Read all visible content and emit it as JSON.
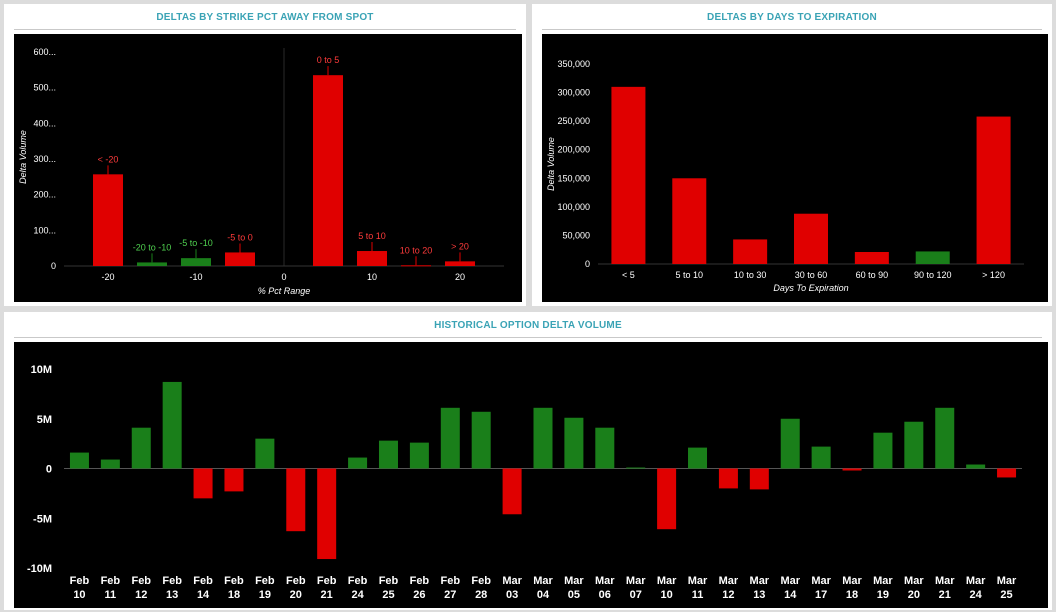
{
  "colors": {
    "up": "#1a7f1a",
    "down": "#e00000",
    "axis_text": "#ffffff",
    "title": "#3aa3b5"
  },
  "chart_data": [
    {
      "id": "strike",
      "type": "bar",
      "title": "DELTAS BY STRIKE PCT AWAY FROM SPOT",
      "xlabel": "% Pct Range",
      "ylabel": "Delta Volume",
      "xlim": [
        -25,
        25
      ],
      "x_ticks": [
        -20,
        -10,
        0,
        10,
        20
      ],
      "ylim": [
        0,
        600
      ],
      "y_ticks": [
        0,
        100,
        200,
        300,
        400,
        500,
        600
      ],
      "y_tick_labels": [
        "0",
        "100...",
        "200...",
        "300...",
        "400...",
        "500...",
        "600..."
      ],
      "grid": false,
      "bars": [
        {
          "label": "< -20",
          "x": -20,
          "value": 257,
          "color": "red"
        },
        {
          "label": "-20 to -10",
          "x": -15,
          "value": 10,
          "color": "green"
        },
        {
          "label": "-5 to -10",
          "x": -10,
          "value": 22,
          "color": "green"
        },
        {
          "label": "-5 to 0",
          "x": -5,
          "value": 38,
          "color": "red"
        },
        {
          "label": "0 to 5",
          "x": 5,
          "value": 535,
          "color": "red"
        },
        {
          "label": "5 to 10",
          "x": 10,
          "value": 42,
          "color": "red"
        },
        {
          "label": "10 to 20",
          "x": 15,
          "value": 2,
          "color": "red"
        },
        {
          "label": "> 20",
          "x": 20,
          "value": 13,
          "color": "red"
        }
      ]
    },
    {
      "id": "expiry",
      "type": "bar",
      "title": "DELTAS BY DAYS TO EXPIRATION",
      "xlabel": "Days To Expiration",
      "ylabel": "Delta Volume",
      "categories": [
        "< 5",
        "5 to 10",
        "10 to 30",
        "30 to 60",
        "60 to 90",
        "90 to 120",
        "> 120"
      ],
      "values": [
        310000,
        150000,
        43000,
        88000,
        21000,
        22000,
        258000
      ],
      "bar_colors": [
        "red",
        "red",
        "red",
        "red",
        "red",
        "green",
        "red"
      ],
      "ylim": [
        0,
        350000
      ],
      "y_ticks": [
        0,
        50000,
        100000,
        150000,
        200000,
        250000,
        300000,
        350000
      ],
      "y_tick_labels": [
        "0",
        "50,000",
        "100,000",
        "150,000",
        "200,000",
        "250,000",
        "300,000",
        "350,000"
      ],
      "grid": false
    },
    {
      "id": "history",
      "type": "bar",
      "title": "HISTORICAL OPTION DELTA VOLUME",
      "categories": [
        [
          "Feb",
          "10"
        ],
        [
          "Feb",
          "11"
        ],
        [
          "Feb",
          "12"
        ],
        [
          "Feb",
          "13"
        ],
        [
          "Feb",
          "14"
        ],
        [
          "Feb",
          "18"
        ],
        [
          "Feb",
          "19"
        ],
        [
          "Feb",
          "20"
        ],
        [
          "Feb",
          "21"
        ],
        [
          "Feb",
          "24"
        ],
        [
          "Feb",
          "25"
        ],
        [
          "Feb",
          "26"
        ],
        [
          "Feb",
          "27"
        ],
        [
          "Feb",
          "28"
        ],
        [
          "Mar",
          "03"
        ],
        [
          "Mar",
          "04"
        ],
        [
          "Mar",
          "05"
        ],
        [
          "Mar",
          "06"
        ],
        [
          "Mar",
          "07"
        ],
        [
          "Mar",
          "10"
        ],
        [
          "Mar",
          "11"
        ],
        [
          "Mar",
          "12"
        ],
        [
          "Mar",
          "13"
        ],
        [
          "Mar",
          "14"
        ],
        [
          "Mar",
          "17"
        ],
        [
          "Mar",
          "18"
        ],
        [
          "Mar",
          "19"
        ],
        [
          "Mar",
          "20"
        ],
        [
          "Mar",
          "21"
        ],
        [
          "Mar",
          "24"
        ],
        [
          "Mar",
          "25"
        ]
      ],
      "values": [
        1.6,
        0.9,
        4.1,
        8.7,
        -3.0,
        -2.3,
        3.0,
        -6.3,
        -9.1,
        1.1,
        2.8,
        2.6,
        6.1,
        5.7,
        -4.6,
        6.1,
        5.1,
        4.1,
        0.1,
        -6.1,
        2.1,
        -2.0,
        -2.1,
        5.0,
        2.2,
        -0.2,
        3.6,
        4.7,
        6.1,
        0.4,
        -0.9
      ],
      "ylim": [
        -10,
        10
      ],
      "y_ticks": [
        -10,
        -5,
        0,
        5,
        10
      ],
      "y_tick_labels": [
        "-10M",
        "-5M",
        "0",
        "5M",
        "10M"
      ],
      "grid": false
    }
  ]
}
